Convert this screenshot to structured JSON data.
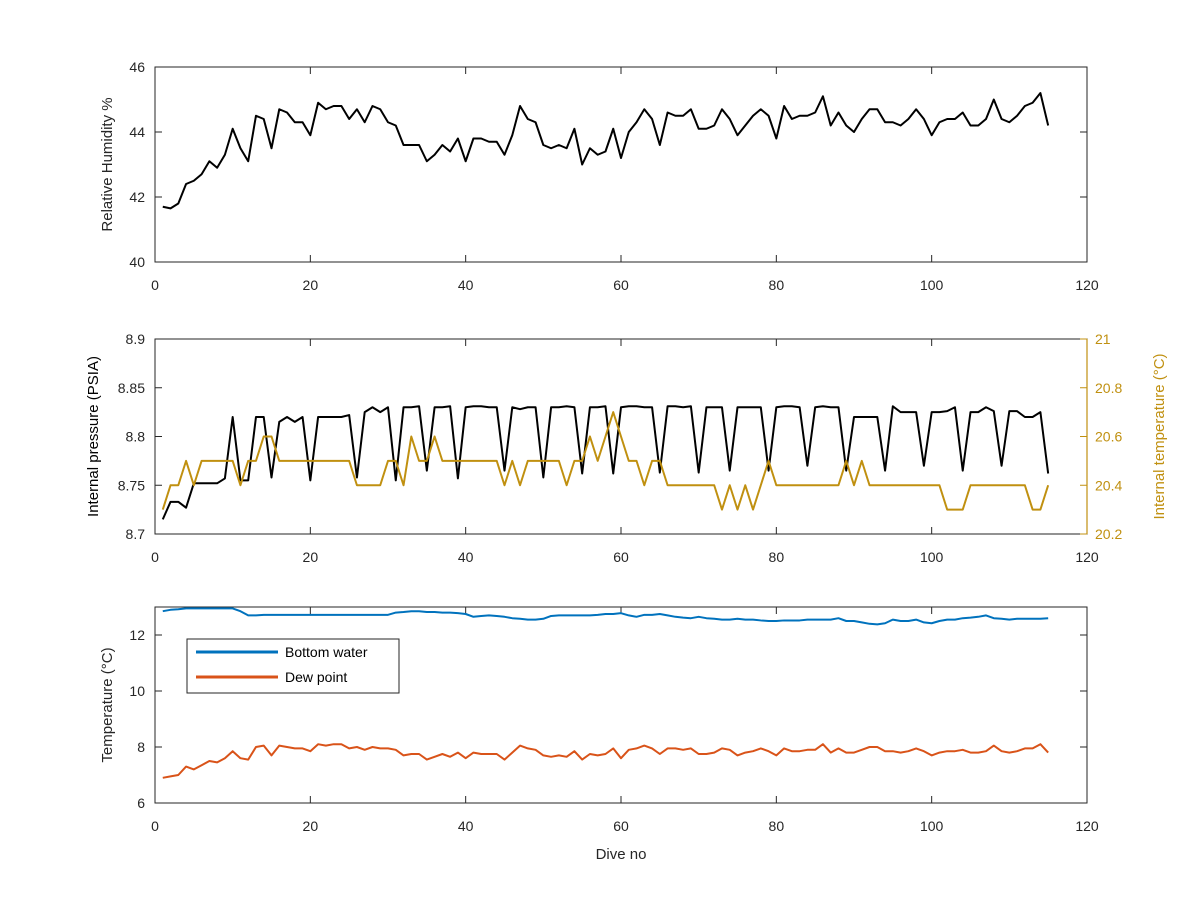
{
  "chart_data": [
    {
      "type": "line",
      "xlabel": "",
      "ylabel": "Relative Humidity %",
      "xlim": [
        0,
        120
      ],
      "ylim": [
        40,
        46
      ],
      "xticks": [
        0,
        20,
        40,
        60,
        80,
        100,
        120
      ],
      "yticks": [
        40,
        42,
        44,
        46
      ],
      "grid": false,
      "series": [
        {
          "color": "#000000",
          "x_start": 1,
          "x_step": 1,
          "values": [
            41.7,
            41.65,
            41.8,
            42.4,
            42.5,
            42.7,
            43.1,
            42.9,
            43.3,
            44.1,
            43.5,
            43.1,
            44.5,
            44.4,
            43.5,
            44.7,
            44.6,
            44.3,
            44.3,
            43.9,
            44.9,
            44.7,
            44.8,
            44.8,
            44.4,
            44.7,
            44.3,
            44.8,
            44.7,
            44.3,
            44.2,
            43.6,
            43.6,
            43.6,
            43.1,
            43.3,
            43.6,
            43.4,
            43.8,
            43.1,
            43.8,
            43.8,
            43.7,
            43.7,
            43.3,
            43.9,
            44.8,
            44.4,
            44.3,
            43.6,
            43.5,
            43.6,
            43.5,
            44.1,
            43.0,
            43.5,
            43.3,
            43.4,
            44.1,
            43.2,
            44.0,
            44.3,
            44.7,
            44.4,
            43.6,
            44.6,
            44.5,
            44.5,
            44.7,
            44.1,
            44.1,
            44.2,
            44.7,
            44.4,
            43.9,
            44.2,
            44.5,
            44.7,
            44.5,
            43.8,
            44.8,
            44.4,
            44.5,
            44.5,
            44.6,
            45.1,
            44.2,
            44.6,
            44.2,
            44.0,
            44.4,
            44.7,
            44.7,
            44.3,
            44.3,
            44.2,
            44.4,
            44.7,
            44.4,
            43.9,
            44.3,
            44.4,
            44.4,
            44.6,
            44.2,
            44.2,
            44.4,
            45.0,
            44.4,
            44.3,
            44.5,
            44.8,
            44.9,
            45.2,
            44.2
          ]
        }
      ]
    },
    {
      "type": "line",
      "xlabel": "",
      "ylabel": "Internal pressure (PSIA)",
      "y2label": "Internal temperature (°C)",
      "xlim": [
        0,
        120
      ],
      "ylim": [
        8.7,
        8.9
      ],
      "y2lim": [
        20.2,
        21
      ],
      "xticks": [
        0,
        20,
        40,
        60,
        80,
        100,
        120
      ],
      "yticks": [
        8.7,
        8.75,
        8.8,
        8.85,
        8.9
      ],
      "y2ticks": [
        20.2,
        20.4,
        20.6,
        20.8,
        21
      ],
      "y2_color": "#c09010",
      "grid": false,
      "series": [
        {
          "axis": "left",
          "color": "#000000",
          "x_start": 1,
          "x_step": 1,
          "values": [
            8.715,
            8.733,
            8.733,
            8.727,
            8.752,
            8.752,
            8.752,
            8.752,
            8.757,
            8.82,
            8.755,
            8.755,
            8.82,
            8.82,
            8.758,
            8.815,
            8.82,
            8.815,
            8.82,
            8.755,
            8.82,
            8.82,
            8.82,
            8.82,
            8.822,
            8.758,
            8.825,
            8.83,
            8.825,
            8.83,
            8.755,
            8.83,
            8.83,
            8.831,
            8.765,
            8.83,
            8.83,
            8.831,
            8.757,
            8.83,
            8.831,
            8.831,
            8.83,
            8.83,
            8.765,
            8.83,
            8.828,
            8.83,
            8.83,
            8.758,
            8.83,
            8.83,
            8.831,
            8.83,
            8.762,
            8.83,
            8.83,
            8.831,
            8.762,
            8.83,
            8.831,
            8.831,
            8.83,
            8.83,
            8.763,
            8.831,
            8.831,
            8.83,
            8.831,
            8.763,
            8.83,
            8.83,
            8.83,
            8.765,
            8.83,
            8.83,
            8.83,
            8.83,
            8.765,
            8.83,
            8.831,
            8.831,
            8.83,
            8.77,
            8.83,
            8.831,
            8.83,
            8.83,
            8.765,
            8.82,
            8.82,
            8.82,
            8.82,
            8.765,
            8.831,
            8.825,
            8.825,
            8.825,
            8.77,
            8.825,
            8.825,
            8.826,
            8.83,
            8.765,
            8.825,
            8.825,
            8.83,
            8.826,
            8.77,
            8.826,
            8.826,
            8.82,
            8.82,
            8.825,
            8.762
          ]
        },
        {
          "axis": "right",
          "color": "#c09010",
          "x_start": 1,
          "x_step": 1,
          "values": [
            20.3,
            20.4,
            20.4,
            20.5,
            20.4,
            20.5,
            20.5,
            20.5,
            20.5,
            20.5,
            20.4,
            20.5,
            20.5,
            20.6,
            20.6,
            20.5,
            20.5,
            20.5,
            20.5,
            20.5,
            20.5,
            20.5,
            20.5,
            20.5,
            20.5,
            20.4,
            20.4,
            20.4,
            20.4,
            20.5,
            20.5,
            20.4,
            20.6,
            20.5,
            20.5,
            20.6,
            20.5,
            20.5,
            20.5,
            20.5,
            20.5,
            20.5,
            20.5,
            20.5,
            20.4,
            20.5,
            20.4,
            20.5,
            20.5,
            20.5,
            20.5,
            20.5,
            20.4,
            20.5,
            20.5,
            20.6,
            20.5,
            20.6,
            20.7,
            20.6,
            20.5,
            20.5,
            20.4,
            20.5,
            20.5,
            20.4,
            20.4,
            20.4,
            20.4,
            20.4,
            20.4,
            20.4,
            20.3,
            20.4,
            20.3,
            20.4,
            20.3,
            20.4,
            20.5,
            20.4,
            20.4,
            20.4,
            20.4,
            20.4,
            20.4,
            20.4,
            20.4,
            20.4,
            20.5,
            20.4,
            20.5,
            20.4,
            20.4,
            20.4,
            20.4,
            20.4,
            20.4,
            20.4,
            20.4,
            20.4,
            20.4,
            20.3,
            20.3,
            20.3,
            20.4,
            20.4,
            20.4,
            20.4,
            20.4,
            20.4,
            20.4,
            20.4,
            20.3,
            20.3,
            20.4
          ]
        }
      ]
    },
    {
      "type": "line",
      "xlabel": "Dive no",
      "ylabel": "Temperature (°C)",
      "xlim": [
        0,
        120
      ],
      "ylim": [
        6,
        13
      ],
      "xticks": [
        0,
        20,
        40,
        60,
        80,
        100,
        120
      ],
      "yticks": [
        6,
        8,
        10,
        12
      ],
      "grid": false,
      "legend_position": "upper-left",
      "series": [
        {
          "name": "Bottom water",
          "color": "#0072bd",
          "x_start": 1,
          "x_step": 1,
          "values": [
            12.85,
            12.9,
            12.92,
            12.95,
            12.95,
            12.95,
            12.95,
            12.95,
            12.95,
            12.95,
            12.85,
            12.7,
            12.7,
            12.72,
            12.72,
            12.72,
            12.72,
            12.72,
            12.72,
            12.72,
            12.72,
            12.72,
            12.72,
            12.72,
            12.72,
            12.72,
            12.72,
            12.72,
            12.72,
            12.72,
            12.8,
            12.82,
            12.85,
            12.85,
            12.82,
            12.82,
            12.8,
            12.8,
            12.78,
            12.75,
            12.65,
            12.68,
            12.7,
            12.68,
            12.65,
            12.6,
            12.58,
            12.55,
            12.55,
            12.58,
            12.68,
            12.7,
            12.7,
            12.7,
            12.7,
            12.7,
            12.72,
            12.75,
            12.75,
            12.78,
            12.7,
            12.65,
            12.72,
            12.72,
            12.75,
            12.7,
            12.65,
            12.62,
            12.6,
            12.65,
            12.6,
            12.58,
            12.55,
            12.55,
            12.58,
            12.55,
            12.55,
            12.52,
            12.5,
            12.5,
            12.52,
            12.52,
            12.52,
            12.55,
            12.55,
            12.55,
            12.55,
            12.6,
            12.5,
            12.5,
            12.45,
            12.4,
            12.38,
            12.42,
            12.55,
            12.5,
            12.5,
            12.55,
            12.45,
            12.42,
            12.5,
            12.55,
            12.55,
            12.6,
            12.62,
            12.65,
            12.7,
            12.6,
            12.58,
            12.55,
            12.58,
            12.58,
            12.58,
            12.58,
            12.6
          ]
        },
        {
          "name": "Dew point",
          "color": "#d95319",
          "x_start": 1,
          "x_step": 1,
          "values": [
            6.9,
            6.95,
            7.0,
            7.3,
            7.2,
            7.35,
            7.5,
            7.45,
            7.6,
            7.85,
            7.6,
            7.55,
            8.0,
            8.05,
            7.7,
            8.05,
            8.0,
            7.95,
            7.95,
            7.85,
            8.1,
            8.05,
            8.1,
            8.1,
            7.95,
            8.0,
            7.9,
            8.0,
            7.95,
            7.95,
            7.9,
            7.7,
            7.75,
            7.75,
            7.55,
            7.65,
            7.75,
            7.65,
            7.8,
            7.6,
            7.8,
            7.75,
            7.75,
            7.75,
            7.55,
            7.8,
            8.05,
            7.95,
            7.9,
            7.7,
            7.65,
            7.7,
            7.65,
            7.85,
            7.55,
            7.75,
            7.7,
            7.75,
            7.95,
            7.6,
            7.9,
            7.95,
            8.05,
            7.95,
            7.75,
            7.95,
            7.95,
            7.9,
            7.95,
            7.75,
            7.75,
            7.8,
            7.95,
            7.9,
            7.7,
            7.8,
            7.85,
            7.95,
            7.85,
            7.7,
            7.95,
            7.85,
            7.85,
            7.9,
            7.9,
            8.1,
            7.8,
            7.95,
            7.8,
            7.8,
            7.9,
            8.0,
            8.0,
            7.85,
            7.85,
            7.8,
            7.85,
            7.95,
            7.85,
            7.7,
            7.8,
            7.85,
            7.85,
            7.9,
            7.8,
            7.8,
            7.85,
            8.05,
            7.85,
            7.8,
            7.85,
            7.95,
            7.95,
            8.1,
            7.8
          ]
        }
      ]
    }
  ]
}
